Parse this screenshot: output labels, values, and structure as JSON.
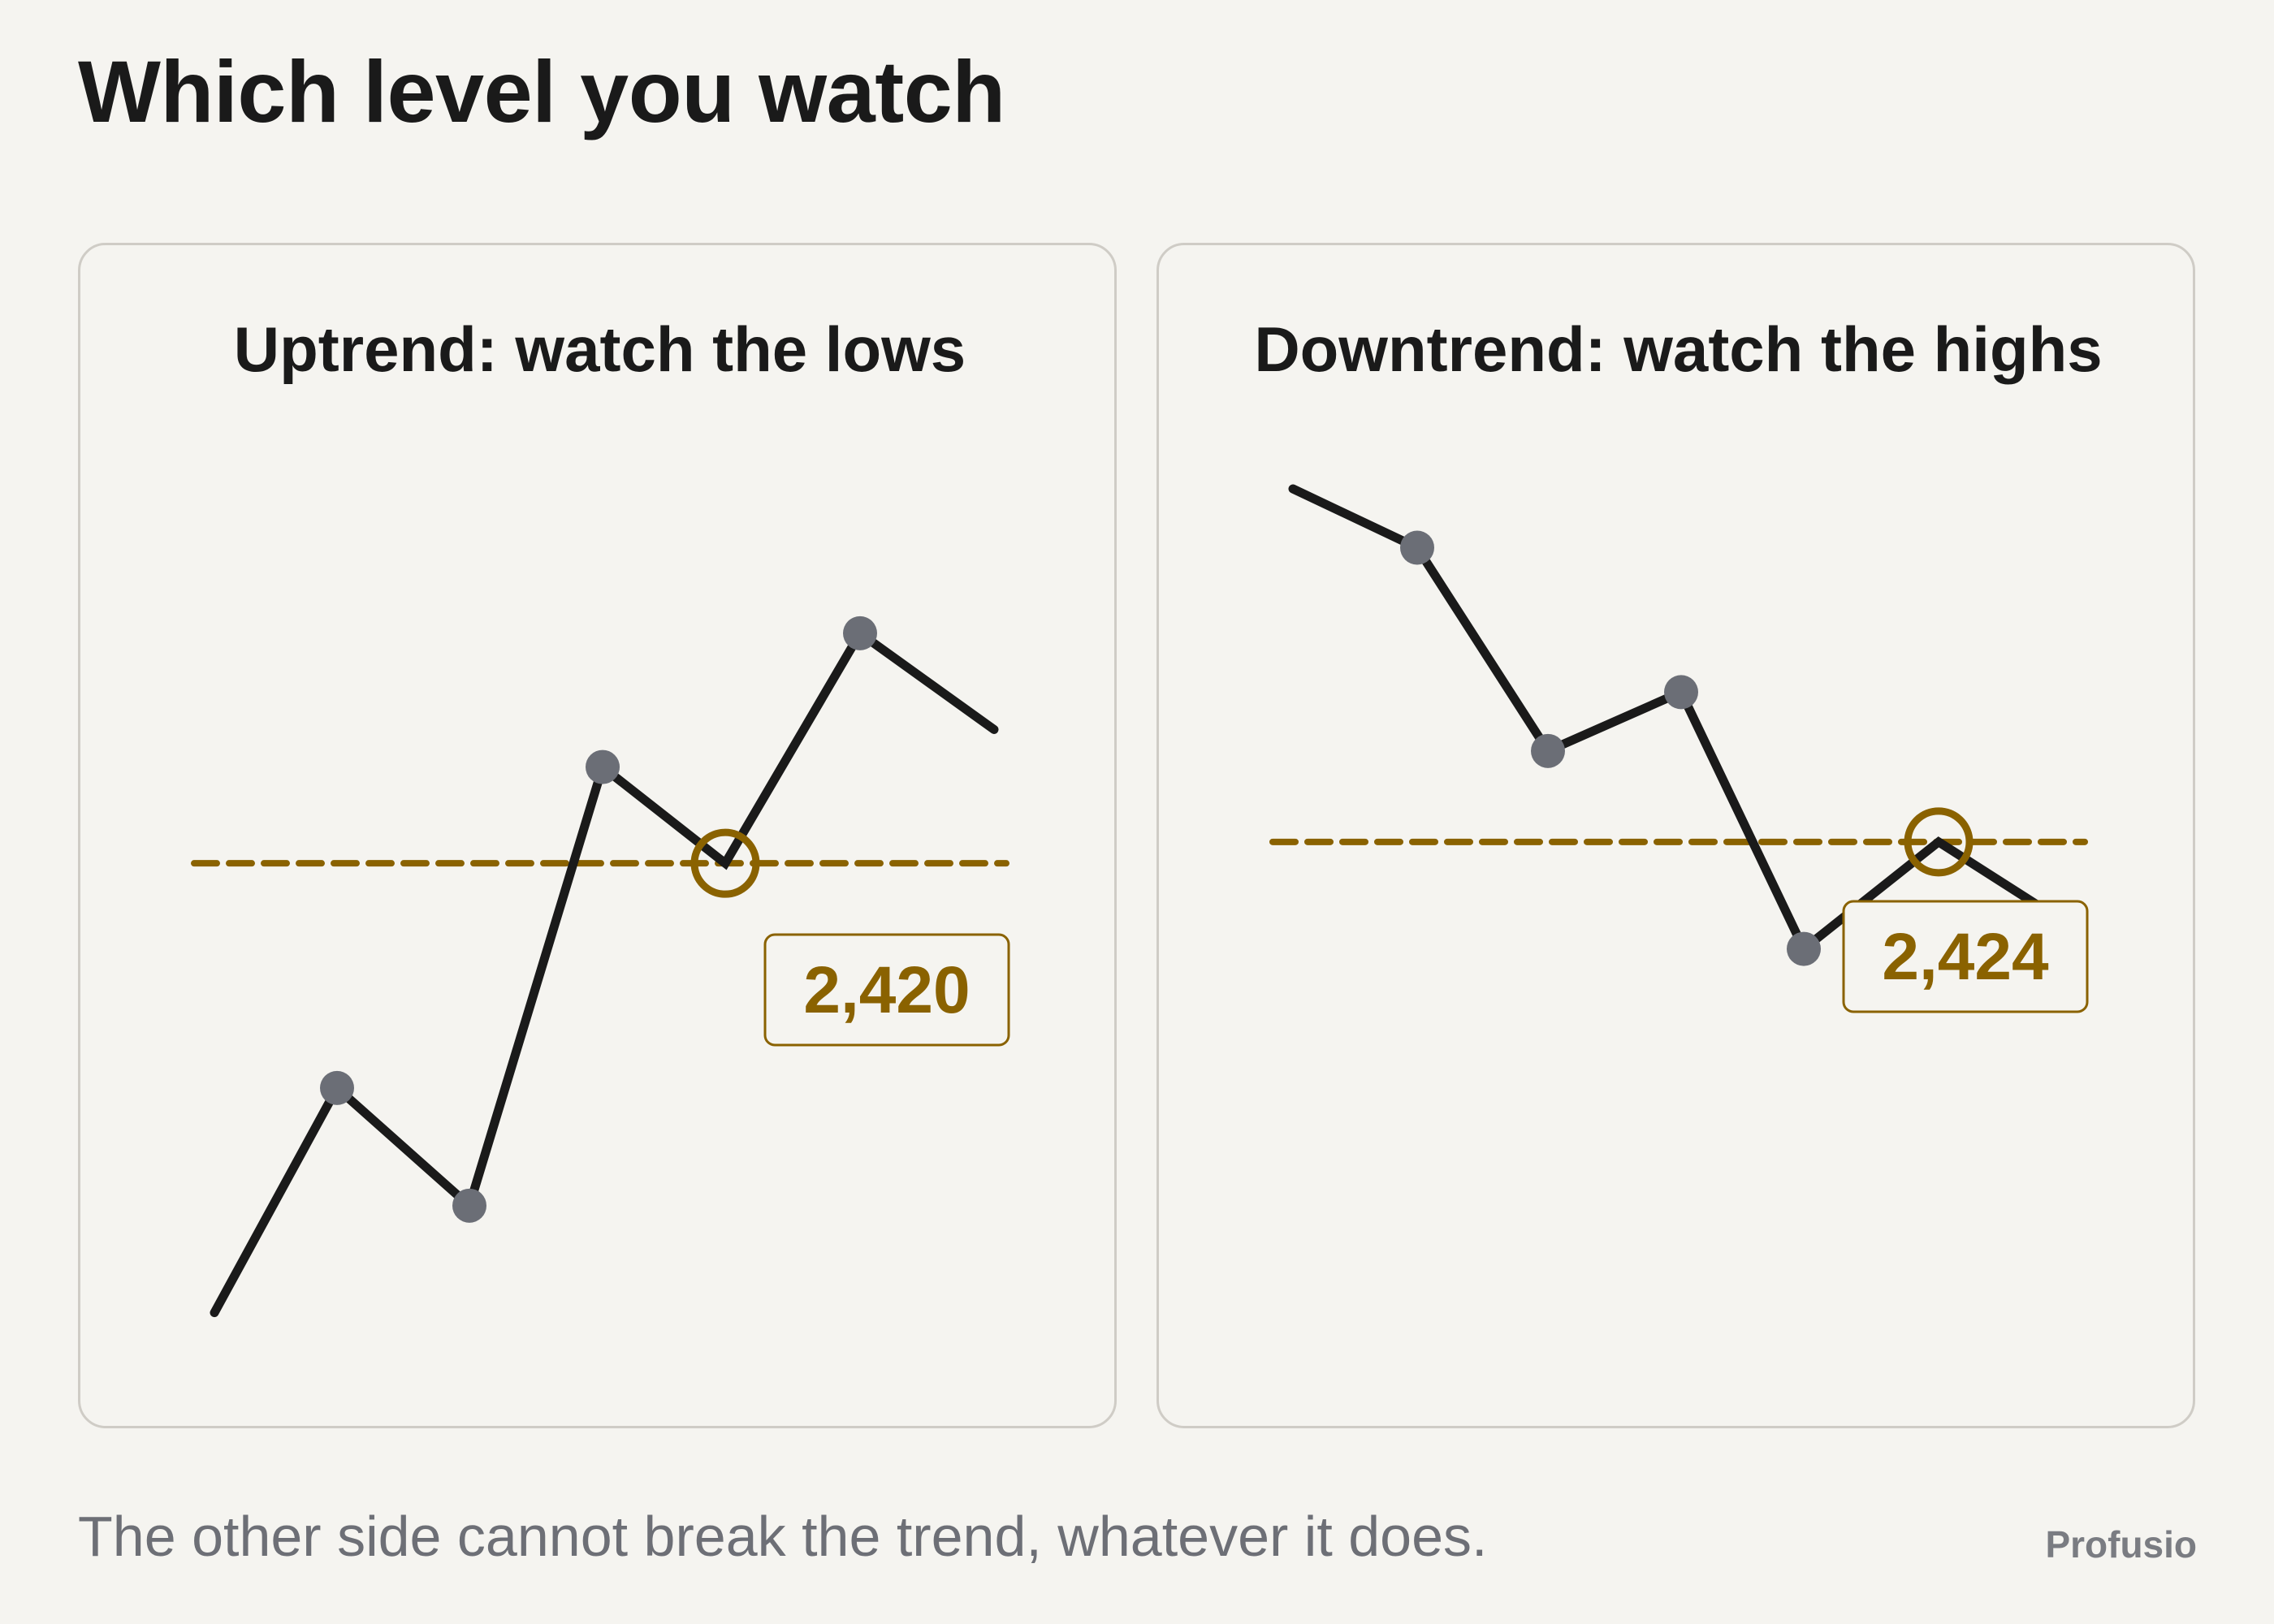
{
  "title": "Which level you watch",
  "footer": "The other side cannot break the trend, whatever it does.",
  "brand": "Profusio",
  "colors": {
    "line": "#1a1a1a",
    "swing_point": "#6b6e76",
    "level": "#8a6200",
    "panel_border": "#cfccc6",
    "background": "#f5f4f0"
  },
  "chart_data": [
    {
      "type": "line",
      "title": "Uptrend: watch the lows",
      "x": [
        0,
        1,
        2,
        3,
        4,
        5,
        6
      ],
      "values": [
        2336,
        2378,
        2356,
        2438,
        2420,
        2463,
        2445
      ],
      "swing_points": [
        1,
        2,
        3,
        5
      ],
      "level": {
        "value": 2420,
        "label": "2,420",
        "marker_index": 4
      },
      "ylim": [
        2320,
        2490
      ]
    },
    {
      "type": "line",
      "title": "Downtrend: watch the highs",
      "x": [
        0,
        1,
        2,
        3,
        4,
        5,
        6
      ],
      "values": [
        2490,
        2479,
        2441,
        2452,
        2404,
        2424,
        2408
      ],
      "swing_points": [
        1,
        2,
        3,
        4
      ],
      "level": {
        "value": 2424,
        "label": "2,424",
        "marker_index": 5
      },
      "ylim": [
        2320,
        2490
      ]
    }
  ]
}
